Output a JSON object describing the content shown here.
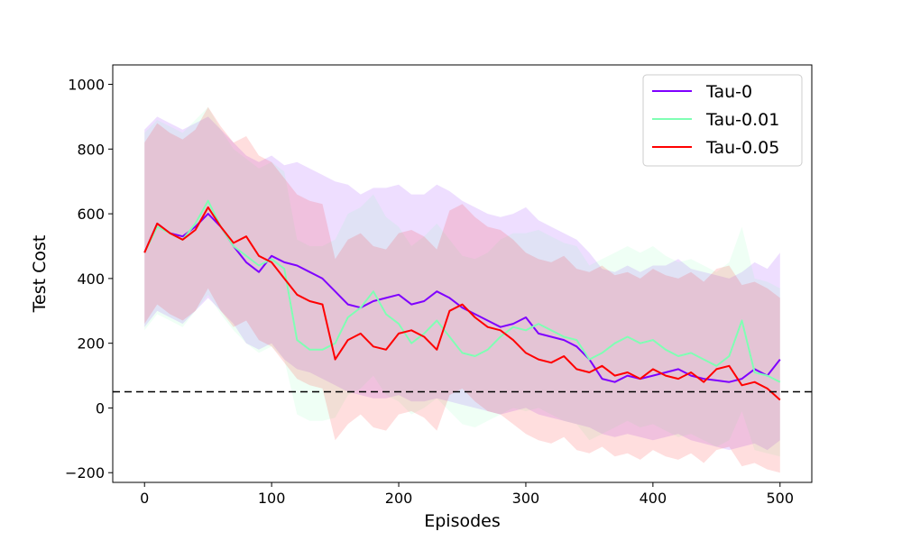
{
  "chart_data": {
    "type": "line",
    "xlabel": "Episodes",
    "ylabel": "Test Cost",
    "xlim": [
      -25,
      525
    ],
    "ylim": [
      -230,
      1060
    ],
    "x_ticks": [
      0,
      100,
      200,
      300,
      400,
      500
    ],
    "y_ticks": [
      -200,
      0,
      200,
      400,
      600,
      800,
      1000
    ],
    "x_tick_labels": [
      "0",
      "100",
      "200",
      "300",
      "400",
      "500"
    ],
    "y_tick_labels": [
      "−200",
      "0",
      "200",
      "400",
      "600",
      "800",
      "1000"
    ],
    "grid": false,
    "legend_position": "top-right",
    "reference_line": {
      "y": 50,
      "style": "dashed",
      "color": "#000000"
    },
    "series": [
      {
        "name": "Tau-0",
        "color": "#7f00ff",
        "x": [
          0,
          10,
          20,
          30,
          40,
          50,
          60,
          70,
          80,
          90,
          100,
          110,
          120,
          130,
          140,
          150,
          160,
          170,
          180,
          190,
          200,
          210,
          220,
          230,
          240,
          250,
          260,
          270,
          280,
          290,
          300,
          310,
          320,
          330,
          340,
          350,
          360,
          370,
          380,
          390,
          400,
          410,
          420,
          430,
          440,
          450,
          460,
          470,
          480,
          490,
          500
        ],
        "y": [
          480,
          570,
          540,
          530,
          560,
          600,
          560,
          500,
          450,
          420,
          470,
          450,
          440,
          420,
          400,
          360,
          320,
          310,
          330,
          340,
          350,
          320,
          330,
          360,
          340,
          310,
          290,
          270,
          250,
          260,
          280,
          230,
          220,
          210,
          190,
          150,
          90,
          80,
          100,
          90,
          100,
          110,
          120,
          100,
          90,
          85,
          80,
          90,
          120,
          100,
          150
        ],
        "band_lower": [
          250,
          300,
          280,
          260,
          300,
          340,
          300,
          260,
          200,
          180,
          200,
          150,
          120,
          110,
          90,
          70,
          50,
          40,
          30,
          30,
          40,
          20,
          20,
          30,
          20,
          10,
          0,
          -10,
          -20,
          -10,
          0,
          -20,
          -30,
          -40,
          -50,
          -60,
          -80,
          -90,
          -80,
          -90,
          -100,
          -90,
          -80,
          -100,
          -110,
          -120,
          -130,
          -120,
          -110,
          -130,
          -100
        ],
        "band_upper": [
          860,
          900,
          880,
          860,
          880,
          900,
          860,
          820,
          780,
          760,
          780,
          750,
          760,
          740,
          720,
          700,
          690,
          660,
          680,
          680,
          690,
          660,
          660,
          690,
          670,
          640,
          620,
          600,
          590,
          600,
          620,
          580,
          560,
          540,
          520,
          480,
          430,
          420,
          440,
          420,
          440,
          440,
          460,
          430,
          420,
          410,
          400,
          420,
          450,
          430,
          480
        ]
      },
      {
        "name": "Tau-0.01",
        "color": "#80ffb4",
        "x": [
          0,
          10,
          20,
          30,
          40,
          50,
          60,
          70,
          80,
          90,
          100,
          110,
          120,
          130,
          140,
          150,
          160,
          170,
          180,
          190,
          200,
          210,
          220,
          230,
          240,
          250,
          260,
          270,
          280,
          290,
          300,
          310,
          320,
          330,
          340,
          350,
          360,
          370,
          380,
          390,
          400,
          410,
          420,
          430,
          440,
          450,
          460,
          470,
          480,
          490,
          500
        ],
        "y": [
          480,
          560,
          540,
          520,
          570,
          640,
          560,
          500,
          470,
          440,
          460,
          430,
          210,
          180,
          180,
          200,
          280,
          310,
          360,
          290,
          260,
          200,
          230,
          270,
          220,
          170,
          160,
          180,
          220,
          250,
          240,
          260,
          240,
          220,
          210,
          150,
          170,
          200,
          220,
          200,
          210,
          180,
          160,
          170,
          150,
          130,
          160,
          270,
          110,
          100,
          80
        ],
        "band_lower": [
          240,
          290,
          270,
          250,
          300,
          350,
          290,
          240,
          200,
          170,
          190,
          150,
          -20,
          -40,
          -40,
          -30,
          40,
          60,
          100,
          40,
          20,
          -20,
          0,
          30,
          -10,
          -50,
          -60,
          -40,
          -20,
          0,
          -10,
          0,
          -20,
          -40,
          -50,
          -100,
          -80,
          -60,
          -40,
          -60,
          -50,
          -70,
          -90,
          -80,
          -100,
          -120,
          -100,
          -10,
          -130,
          -140,
          -150
        ],
        "band_upper": [
          850,
          890,
          870,
          850,
          890,
          930,
          860,
          800,
          770,
          740,
          760,
          730,
          520,
          500,
          500,
          520,
          600,
          620,
          660,
          590,
          560,
          500,
          530,
          570,
          520,
          470,
          460,
          480,
          520,
          540,
          540,
          550,
          530,
          510,
          500,
          440,
          460,
          480,
          500,
          480,
          500,
          470,
          450,
          460,
          440,
          420,
          450,
          560,
          400,
          390,
          370
        ]
      },
      {
        "name": "Tau-0.05",
        "color": "#ff0000",
        "x": [
          0,
          10,
          20,
          30,
          40,
          50,
          60,
          70,
          80,
          90,
          100,
          110,
          120,
          130,
          140,
          150,
          160,
          170,
          180,
          190,
          200,
          210,
          220,
          230,
          240,
          250,
          260,
          270,
          280,
          290,
          300,
          310,
          320,
          330,
          340,
          350,
          360,
          370,
          380,
          390,
          400,
          410,
          420,
          430,
          440,
          450,
          460,
          470,
          480,
          490,
          500
        ],
        "y": [
          480,
          570,
          540,
          520,
          550,
          620,
          560,
          510,
          530,
          470,
          450,
          400,
          350,
          330,
          320,
          150,
          210,
          230,
          190,
          180,
          230,
          240,
          220,
          180,
          300,
          320,
          280,
          250,
          240,
          210,
          170,
          150,
          140,
          160,
          120,
          110,
          130,
          100,
          110,
          90,
          120,
          100,
          90,
          110,
          80,
          120,
          130,
          70,
          80,
          60,
          25
        ],
        "band_lower": [
          260,
          320,
          290,
          270,
          300,
          370,
          300,
          250,
          270,
          210,
          190,
          140,
          90,
          70,
          60,
          -100,
          -50,
          -20,
          -60,
          -70,
          -20,
          -10,
          -30,
          -70,
          40,
          60,
          20,
          -10,
          -20,
          -50,
          -80,
          -100,
          -110,
          -90,
          -130,
          -140,
          -120,
          -150,
          -140,
          -160,
          -130,
          -150,
          -160,
          -140,
          -170,
          -130,
          -120,
          -180,
          -170,
          -190,
          -200
        ],
        "band_upper": [
          820,
          880,
          850,
          830,
          860,
          930,
          870,
          820,
          840,
          780,
          760,
          710,
          660,
          640,
          630,
          460,
          520,
          540,
          500,
          490,
          540,
          550,
          530,
          490,
          610,
          630,
          590,
          560,
          550,
          520,
          480,
          460,
          450,
          470,
          430,
          420,
          440,
          410,
          420,
          400,
          430,
          410,
          400,
          420,
          390,
          430,
          440,
          380,
          390,
          370,
          340
        ]
      }
    ]
  }
}
